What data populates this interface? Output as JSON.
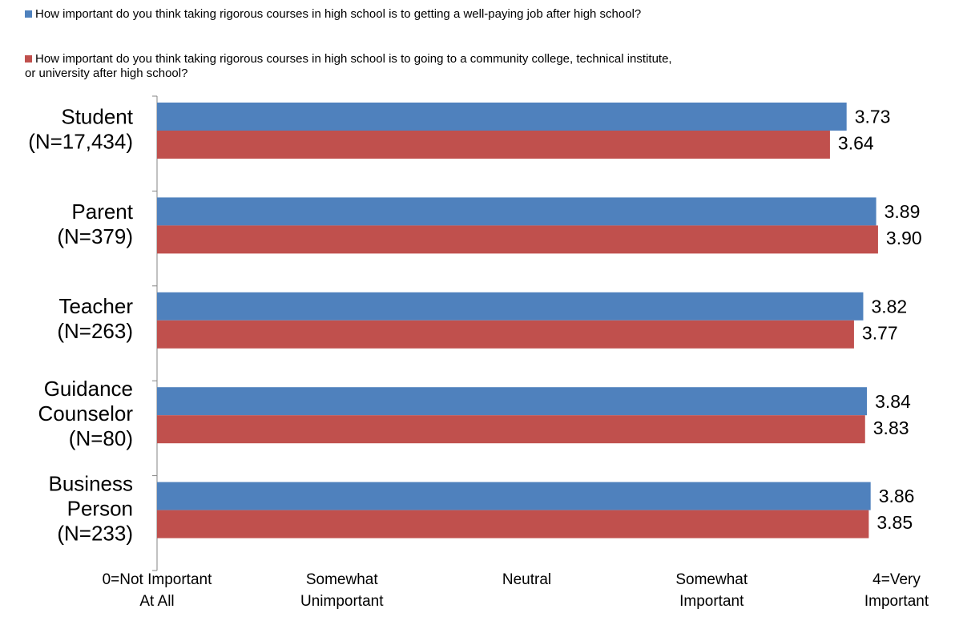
{
  "chart_data": {
    "type": "bar",
    "orientation": "horizontal",
    "categories": [
      [
        "Student",
        "(N=17,434)"
      ],
      [
        "Parent",
        "(N=379)"
      ],
      [
        "Teacher",
        "(N=263)"
      ],
      [
        "Guidance",
        "Counselor",
        "(N=80)"
      ],
      [
        "Business",
        "Person",
        "(N=233)"
      ]
    ],
    "series": [
      {
        "name": "How important do you think taking rigorous courses in high school is to getting a well-paying job after high school?",
        "color": "#4F81BD",
        "values": [
          3.73,
          3.89,
          3.82,
          3.84,
          3.86
        ],
        "labels": [
          "3.73",
          "3.89",
          "3.82",
          "3.84",
          "3.86"
        ]
      },
      {
        "name": "How important do you think taking rigorous courses in high school is to going to a community college, technical institute, or university after high school?",
        "name_lines": [
          "How important do you think taking rigorous courses in high school is to going to a community college, technical institute,",
          "or university after high school?"
        ],
        "color": "#C0504D",
        "values": [
          3.64,
          3.9,
          3.77,
          3.83,
          3.85
        ],
        "labels": [
          "3.64",
          "3.90",
          "3.77",
          "3.83",
          "3.85"
        ]
      }
    ],
    "xlim": [
      0,
      4
    ],
    "x_tick_labels": [
      {
        "value": 0,
        "lines": [
          "0=Not Important",
          "At All"
        ]
      },
      {
        "value": 1,
        "lines": [
          "Somewhat",
          "Unimportant"
        ]
      },
      {
        "value": 2,
        "lines": [
          "Neutral"
        ]
      },
      {
        "value": 3,
        "lines": [
          "Somewhat",
          "Important"
        ]
      },
      {
        "value": 4,
        "lines": [
          "4=Very",
          "Important"
        ]
      }
    ],
    "legend_position": "top",
    "grid": false,
    "title": "",
    "xlabel": "",
    "ylabel": ""
  }
}
